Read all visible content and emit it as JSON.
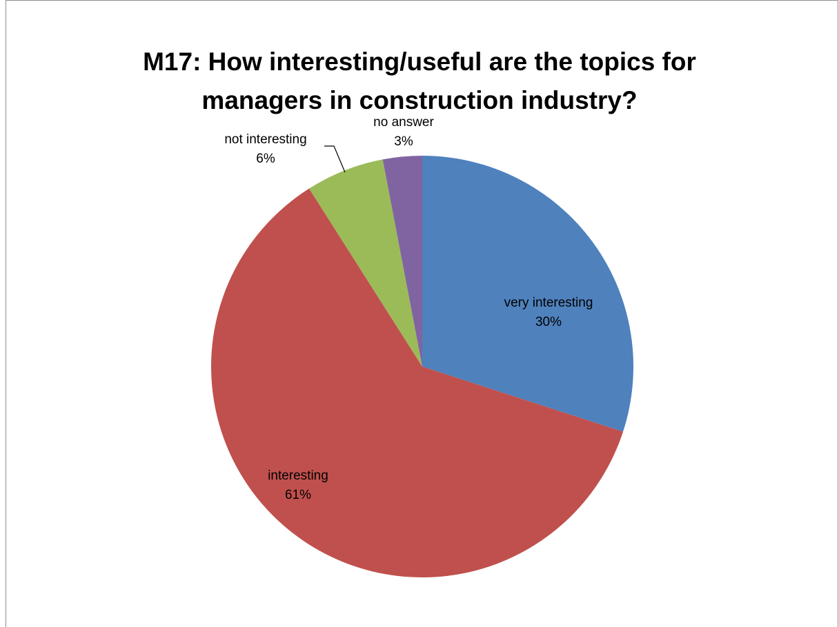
{
  "chart_data": {
    "type": "pie",
    "title": "M17: How interesting/useful are the topics for managers in construction industry?",
    "categories": [
      "very interesting",
      "interesting",
      "not interesting",
      "no answer"
    ],
    "values": [
      30,
      61,
      6,
      3
    ],
    "value_labels": [
      "30%",
      "61%",
      "6%",
      "3%"
    ],
    "colors": [
      "#4f81bd",
      "#c0504d",
      "#9bbb59",
      "#8064a2"
    ]
  }
}
